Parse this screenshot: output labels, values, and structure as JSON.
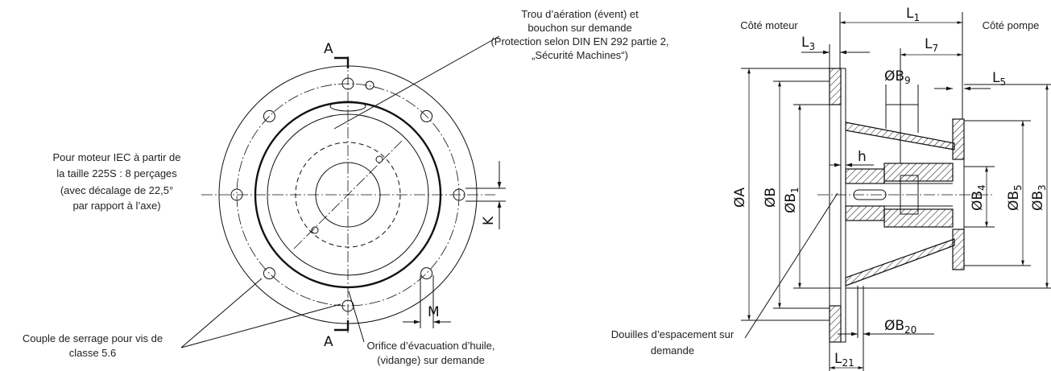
{
  "left_view": {
    "section_marks": [
      "A",
      "A"
    ],
    "dims": [
      "K",
      "M"
    ],
    "callouts": [
      {
        "lines": [
          "Trou d’aération (évent) et",
          "bouchon sur demande",
          "(Protection selon DIN EN 292 partie 2,",
          "„Sécurité Machines“)"
        ]
      },
      {
        "lines": [
          "Pour moteur IEC à partir de",
          "la taille 225S : 8 perçages",
          "(avec décalage de 22,5°",
          "par rapport à l’axe)"
        ]
      },
      {
        "lines": [
          "Couple de serrage pour vis de",
          "classe 5.6"
        ]
      },
      {
        "lines": [
          "Orifice d’évacuation d’huile,",
          "(vidange) sur demande"
        ]
      }
    ]
  },
  "right_view": {
    "sides": [
      "Côté moteur",
      "Côté pompe"
    ],
    "dims": [
      {
        "text": "L",
        "sub": "1"
      },
      {
        "text": "L",
        "sub": "3"
      },
      {
        "text": "L",
        "sub": "7"
      },
      {
        "text": "ØB",
        "sub": "9"
      },
      {
        "text": "L",
        "sub": "5"
      },
      {
        "text": "h"
      },
      {
        "text": "ØA"
      },
      {
        "text": "ØB"
      },
      {
        "text": "ØB",
        "sub": "1"
      },
      {
        "text": "ØB",
        "sub": "4"
      },
      {
        "text": "ØB",
        "sub": "5"
      },
      {
        "text": "ØB",
        "sub": "3"
      },
      {
        "text": "ØB",
        "sub": "20"
      },
      {
        "text": "L",
        "sub": "21"
      }
    ],
    "callouts": [
      {
        "lines": [
          "Douilles d’espacement sur",
          "demande"
        ]
      }
    ]
  }
}
